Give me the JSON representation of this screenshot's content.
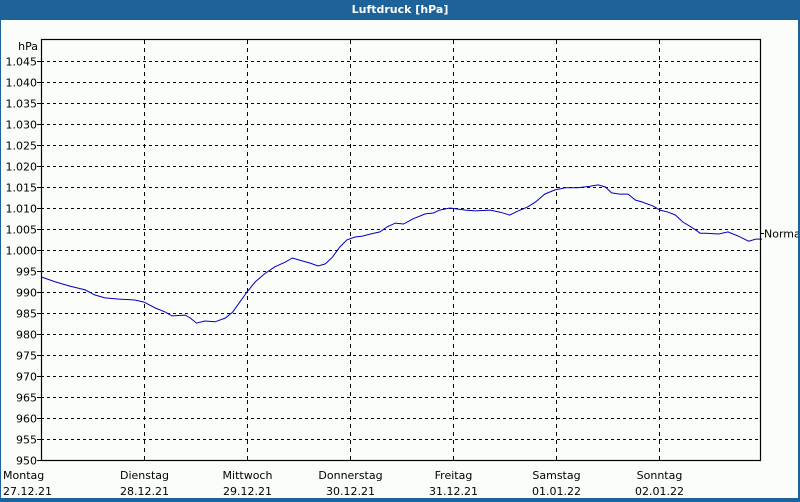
{
  "window": {
    "title": "Luftdruck [hPa]"
  },
  "colors": {
    "titlebar": "#1d6298",
    "background": "#fbfdfb",
    "line": "#0000c0",
    "grid": "#000000"
  },
  "chart_data": {
    "type": "line",
    "title": "Luftdruck [hPa]",
    "ylabel": "hPa",
    "xlabel": "",
    "ylim": [
      950,
      1048
    ],
    "grid": true,
    "yticks": [
      950,
      955,
      960,
      965,
      970,
      975,
      980,
      985,
      990,
      995,
      1000,
      1005,
      1010,
      1015,
      1020,
      1025,
      1030,
      1035,
      1040,
      1045
    ],
    "ytick_labels": [
      "950",
      "955",
      "960",
      "965",
      "970",
      "975",
      "980",
      "985",
      "990",
      "995",
      "1.000",
      "1.005",
      "1.010",
      "1.015",
      "1.020",
      "1.025",
      "1.030",
      "1.035",
      "1.040",
      "1.045"
    ],
    "xticks": [
      {
        "day": "Montag",
        "date": "27.12.21"
      },
      {
        "day": "Dienstag",
        "date": "28.12.21"
      },
      {
        "day": "Mittwoch",
        "date": "29.12.21"
      },
      {
        "day": "Donnerstag",
        "date": "30.12.21"
      },
      {
        "day": "Freitag",
        "date": "31.12.21"
      },
      {
        "day": "Samstag",
        "date": "01.01.22"
      },
      {
        "day": "Sonntag",
        "date": "02.01.22"
      }
    ],
    "reference_line": {
      "label": "Normal",
      "value": 1004
    },
    "series": [
      {
        "name": "Luftdruck",
        "x_days": [
          0,
          0.14,
          0.28,
          0.43,
          0.52,
          0.62,
          0.76,
          0.91,
          1.0,
          1.11,
          1.21,
          1.27,
          1.4,
          1.45,
          1.51,
          1.59,
          1.69,
          1.79,
          1.86,
          1.93,
          2.0,
          2.08,
          2.17,
          2.27,
          2.37,
          2.44,
          2.51,
          2.61,
          2.69,
          2.76,
          2.83,
          2.9,
          2.97,
          3.05,
          3.12,
          3.2,
          3.29,
          3.36,
          3.44,
          3.52,
          3.61,
          3.73,
          3.81,
          3.87,
          3.97,
          4.02,
          4.12,
          4.22,
          4.36,
          4.46,
          4.55,
          4.65,
          4.72,
          4.8,
          4.89,
          4.99,
          5.09,
          5.21,
          5.33,
          5.41,
          5.48,
          5.54,
          5.62,
          5.7,
          5.77,
          5.84,
          5.94,
          6.01,
          6.09,
          6.16,
          6.23,
          6.33,
          6.4,
          6.45,
          6.58,
          6.67,
          6.77,
          6.87,
          6.94,
          7.0
        ],
        "values": [
          993.6,
          992.4,
          991.4,
          990.5,
          989.3,
          988.6,
          988.3,
          988.1,
          987.6,
          986.2,
          985.2,
          984.3,
          984.5,
          983.8,
          982.6,
          983.1,
          982.9,
          983.8,
          985.2,
          987.6,
          990.0,
          992.4,
          994.3,
          996.0,
          997.1,
          998.1,
          997.6,
          996.9,
          996.2,
          996.7,
          998.3,
          1000.7,
          1002.4,
          1003.1,
          1003.3,
          1003.8,
          1004.3,
          1005.5,
          1006.4,
          1006.2,
          1007.4,
          1008.6,
          1008.8,
          1009.5,
          1010.0,
          1009.8,
          1009.5,
          1009.3,
          1009.5,
          1009.0,
          1008.3,
          1009.5,
          1010.2,
          1011.4,
          1013.3,
          1014.3,
          1014.8,
          1014.8,
          1015.2,
          1015.5,
          1015.0,
          1013.6,
          1013.3,
          1013.3,
          1011.9,
          1011.4,
          1010.5,
          1009.5,
          1009.0,
          1008.3,
          1006.7,
          1005.2,
          1004.0,
          1004.0,
          1003.8,
          1004.3,
          1003.3,
          1002.1,
          1002.6,
          1002.6
        ]
      }
    ]
  }
}
